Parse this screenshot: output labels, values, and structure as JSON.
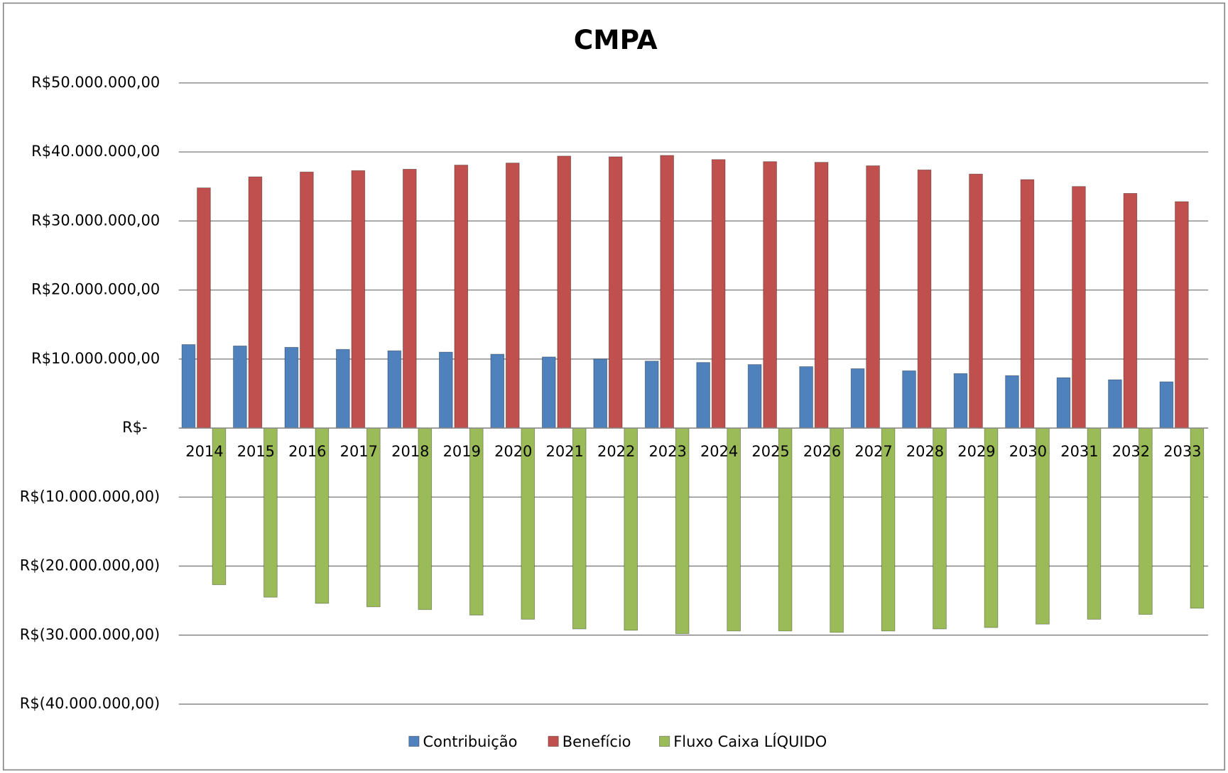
{
  "chart_data": {
    "type": "bar",
    "title": "CMPA",
    "categories": [
      "2014",
      "2015",
      "2016",
      "2017",
      "2018",
      "2019",
      "2020",
      "2021",
      "2022",
      "2023",
      "2024",
      "2025",
      "2026",
      "2027",
      "2028",
      "2029",
      "2030",
      "2031",
      "2032",
      "2033"
    ],
    "series": [
      {
        "name": "Contribuição",
        "color": "#4f81bd",
        "values": [
          12100000,
          11900000,
          11700000,
          11400000,
          11200000,
          11000000,
          10700000,
          10300000,
          10000000,
          9700000,
          9500000,
          9200000,
          8900000,
          8600000,
          8300000,
          7900000,
          7600000,
          7300000,
          7000000,
          6700000
        ]
      },
      {
        "name": "Benefício",
        "color": "#c0504d",
        "values": [
          34800000,
          36400000,
          37100000,
          37300000,
          37500000,
          38100000,
          38400000,
          39400000,
          39300000,
          39500000,
          38900000,
          38600000,
          38500000,
          38000000,
          37400000,
          36800000,
          36000000,
          35000000,
          34000000,
          32800000
        ]
      },
      {
        "name": "Fluxo Caixa LÍQUIDO",
        "color": "#9bbb59",
        "values": [
          -22700000,
          -24500000,
          -25400000,
          -25900000,
          -26300000,
          -27100000,
          -27700000,
          -29100000,
          -29300000,
          -29800000,
          -29400000,
          -29400000,
          -29600000,
          -29400000,
          -29100000,
          -28900000,
          -28400000,
          -27700000,
          -27000000,
          -26100000
        ]
      }
    ],
    "ylim": [
      -40000000,
      50000000
    ],
    "yticks": [
      {
        "value": -40000000,
        "label": "R$(40.000.000,00)"
      },
      {
        "value": -30000000,
        "label": "R$(30.000.000,00)"
      },
      {
        "value": -20000000,
        "label": "R$(20.000.000,00)"
      },
      {
        "value": -10000000,
        "label": "R$(10.000.000,00)"
      },
      {
        "value": 0,
        "label": "R$-"
      },
      {
        "value": 10000000,
        "label": "R$10.000.000,00"
      },
      {
        "value": 20000000,
        "label": "R$20.000.000,00"
      },
      {
        "value": 30000000,
        "label": "R$30.000.000,00"
      },
      {
        "value": 40000000,
        "label": "R$40.000.000,00"
      },
      {
        "value": 50000000,
        "label": "R$50.000.000,00"
      }
    ],
    "grid": true,
    "legend": "bottom"
  }
}
